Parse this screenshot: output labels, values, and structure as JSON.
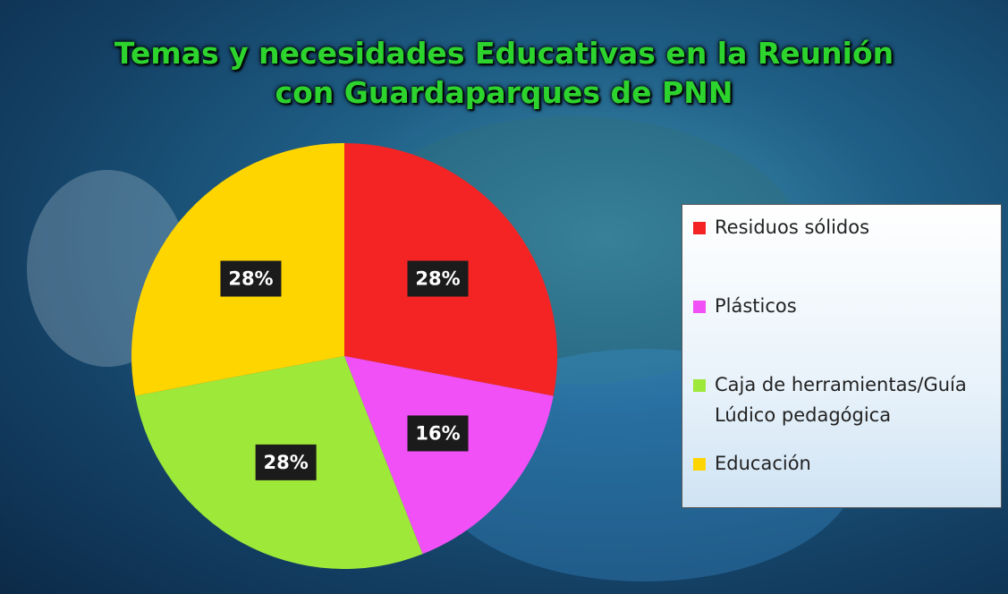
{
  "chart_data": {
    "type": "pie",
    "title": "Temas y necesidades Educativas en la Reunión con Guardaparques de PNN",
    "categories": [
      "Residuos sólidos",
      "Plásticos",
      "Caja de herramientas/Guía Lúdico pedagógica",
      "Educación"
    ],
    "values": [
      28,
      16,
      28,
      28
    ],
    "value_labels": [
      "28%",
      "16%",
      "28%",
      "28%"
    ],
    "colors": [
      "#f42424",
      "#f050f5",
      "#9ee83a",
      "#ffd500"
    ],
    "legend": "right"
  }
}
